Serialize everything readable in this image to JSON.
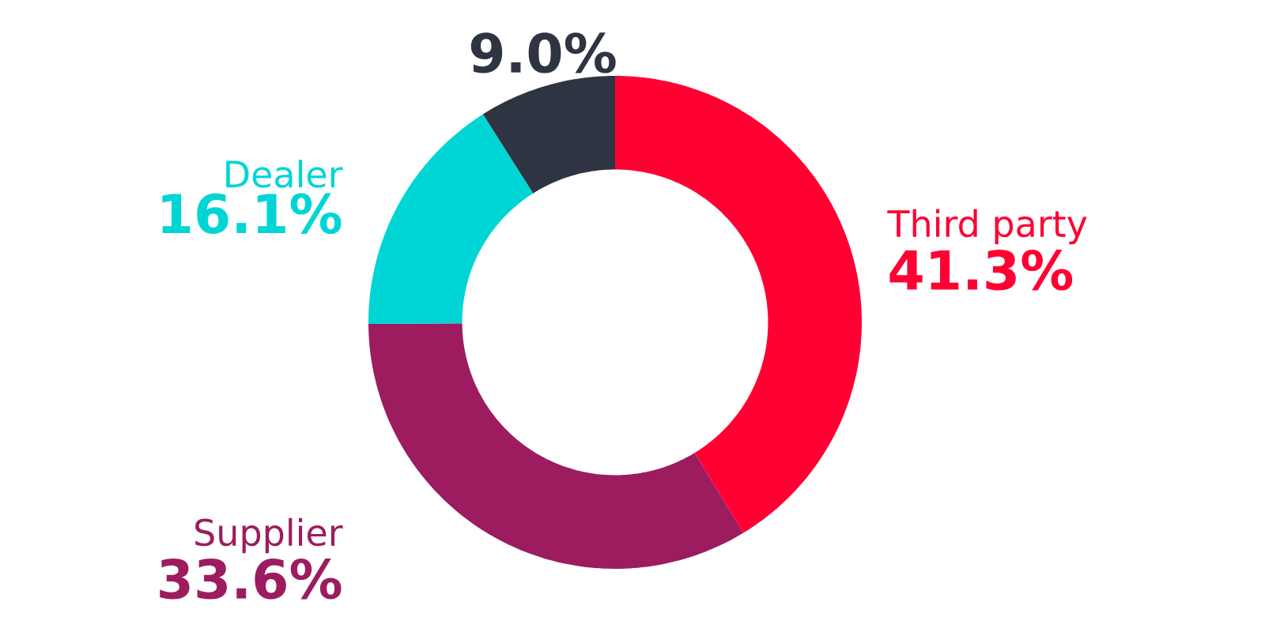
{
  "chart_data": {
    "type": "donut",
    "categories": [
      "Third party",
      "Supplier",
      "Dealer",
      null
    ],
    "values": [
      41.3,
      33.6,
      16.1,
      9.0
    ],
    "colors": [
      "#ff0033",
      "#9c1c5f",
      "#00d5d5",
      "#2e3441"
    ],
    "value_labels": [
      "41.3%",
      "33.6%",
      "16.1%",
      "9.0%"
    ]
  }
}
